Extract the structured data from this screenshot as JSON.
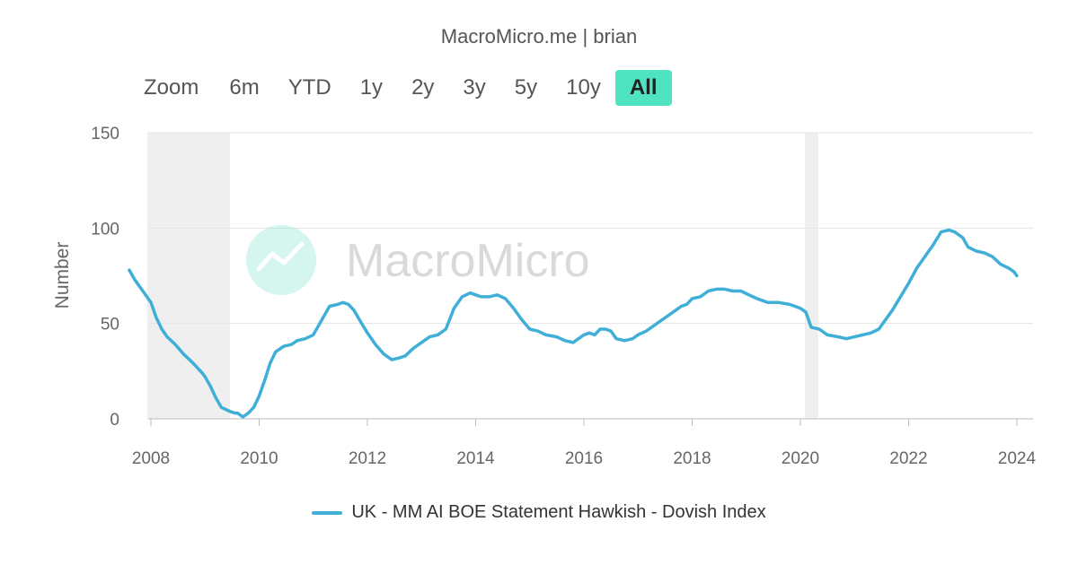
{
  "credit": "MacroMicro.me | brian",
  "range_selector": {
    "zoom_label": "Zoom",
    "buttons": [
      "6m",
      "YTD",
      "1y",
      "2y",
      "3y",
      "5y",
      "10y",
      "All"
    ],
    "active": "All"
  },
  "watermark": "MacroMicro",
  "colors": {
    "line": "#3fafd8",
    "active_button": "#4fe3c1",
    "recession": "#efefef"
  },
  "chart_data": {
    "type": "line",
    "title": "",
    "xlabel": "",
    "ylabel": "Number",
    "ylim": [
      0,
      150
    ],
    "yticks": [
      0,
      50,
      100,
      150
    ],
    "xlim": [
      2007.95,
      2024.3
    ],
    "xticks": [
      "2008",
      "2010",
      "2012",
      "2014",
      "2016",
      "2018",
      "2020",
      "2022",
      "2024"
    ],
    "grid": true,
    "legend_position": "bottom-center",
    "shaded_periods": [
      [
        2007.93,
        2009.46
      ],
      [
        2020.08,
        2020.33
      ]
    ],
    "series": [
      {
        "name": "UK - MM AI BOE Statement Hawkish - Dovish Index",
        "x": [
          2007.6,
          2007.7,
          2007.85,
          2008.0,
          2008.1,
          2008.2,
          2008.3,
          2008.45,
          2008.6,
          2008.75,
          2008.85,
          2008.95,
          2009.0,
          2009.1,
          2009.2,
          2009.3,
          2009.45,
          2009.55,
          2009.6,
          2009.7,
          2009.8,
          2009.9,
          2010.0,
          2010.1,
          2010.2,
          2010.3,
          2010.45,
          2010.6,
          2010.7,
          2010.85,
          2011.0,
          2011.1,
          2011.2,
          2011.3,
          2011.45,
          2011.55,
          2011.65,
          2011.75,
          2011.85,
          2012.0,
          2012.15,
          2012.3,
          2012.45,
          2012.6,
          2012.7,
          2012.85,
          2013.0,
          2013.15,
          2013.3,
          2013.45,
          2013.6,
          2013.75,
          2013.9,
          2014.0,
          2014.1,
          2014.25,
          2014.4,
          2014.55,
          2014.7,
          2014.85,
          2015.0,
          2015.15,
          2015.3,
          2015.5,
          2015.65,
          2015.8,
          2015.9,
          2016.0,
          2016.1,
          2016.2,
          2016.3,
          2016.4,
          2016.5,
          2016.6,
          2016.75,
          2016.9,
          2017.0,
          2017.15,
          2017.3,
          2017.5,
          2017.65,
          2017.8,
          2017.9,
          2018.0,
          2018.15,
          2018.3,
          2018.45,
          2018.6,
          2018.75,
          2018.9,
          2019.05,
          2019.2,
          2019.4,
          2019.6,
          2019.8,
          2019.9,
          2020.0,
          2020.1,
          2020.2,
          2020.35,
          2020.5,
          2020.7,
          2020.85,
          2021.0,
          2021.15,
          2021.3,
          2021.45,
          2021.55,
          2021.7,
          2021.85,
          2022.0,
          2022.15,
          2022.3,
          2022.45,
          2022.6,
          2022.75,
          2022.85,
          2023.0,
          2023.1,
          2023.25,
          2023.4,
          2023.55,
          2023.7,
          2023.85,
          2023.95,
          2024.0
        ],
        "values": [
          78,
          73,
          67,
          61,
          53,
          47,
          43,
          39,
          34,
          30,
          27,
          24,
          22,
          17,
          11,
          6,
          4,
          3,
          3,
          1,
          3,
          6,
          12,
          20,
          29,
          35,
          38,
          39,
          41,
          42,
          44,
          49,
          54,
          59,
          60,
          61,
          60,
          57,
          52,
          45,
          39,
          34,
          31,
          32,
          33,
          37,
          40,
          43,
          44,
          47,
          58,
          64,
          66,
          65,
          64,
          64,
          65,
          63,
          58,
          52,
          47,
          46,
          44,
          43,
          41,
          40,
          42,
          44,
          45,
          44,
          47,
          47,
          46,
          42,
          41,
          42,
          44,
          46,
          49,
          53,
          56,
          59,
          60,
          63,
          64,
          67,
          68,
          68,
          67,
          67,
          65,
          63,
          61,
          61,
          60,
          59,
          58,
          56,
          48,
          47,
          44,
          43,
          42,
          43,
          44,
          45,
          47,
          51,
          57,
          64,
          71,
          79,
          85,
          91,
          98,
          99,
          98,
          95,
          90,
          88,
          87,
          85,
          81,
          79,
          77,
          75
        ]
      }
    ]
  },
  "legend": {
    "label": "UK - MM AI BOE Statement Hawkish - Dovish Index"
  }
}
